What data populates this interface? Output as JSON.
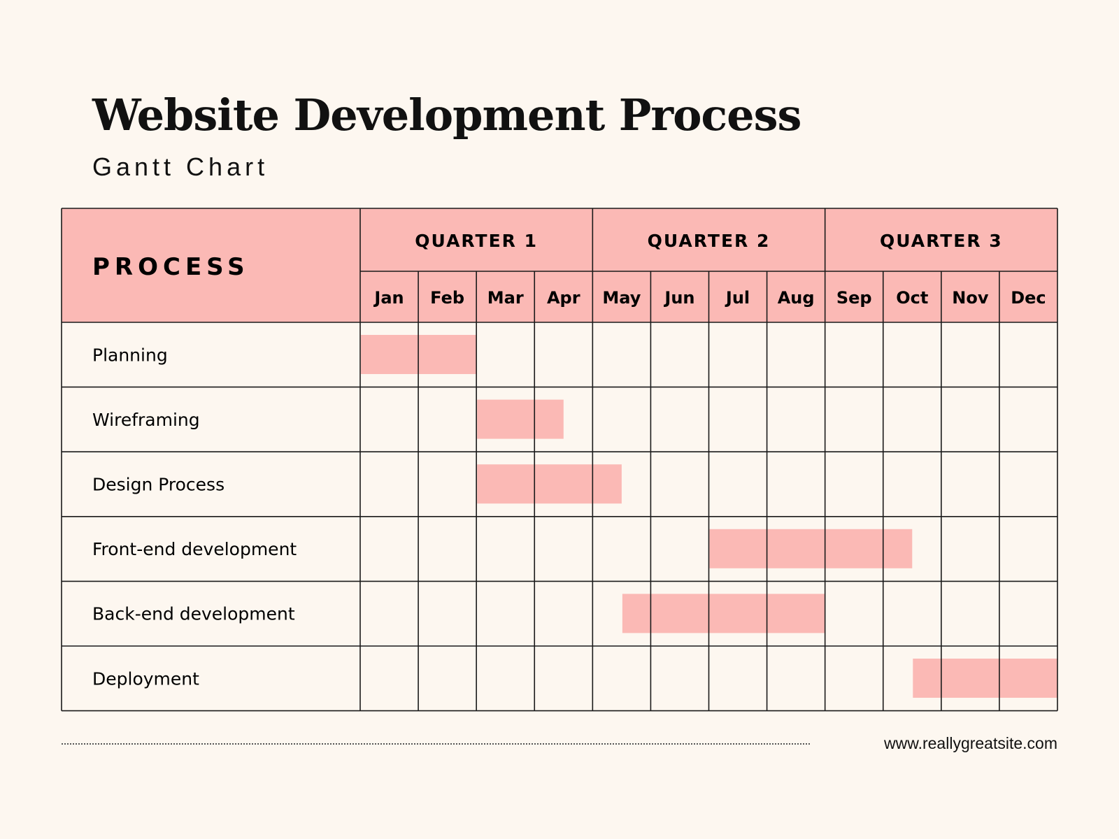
{
  "title": "Website Development Process",
  "subtitle": "Gantt Chart",
  "footer": {
    "url": "www.reallygreatsite.com"
  },
  "colors": {
    "background": "#fdf7f0",
    "header": "#fbb9b5",
    "bar": "#fbb9b5",
    "grid": "#1a1a1a"
  },
  "chart_data": {
    "type": "gantt",
    "process_header": "PROCESS",
    "quarters": [
      {
        "label": "QUARTER 1",
        "months": 4
      },
      {
        "label": "QUARTER 2",
        "months": 4
      },
      {
        "label": "QUARTER 3",
        "months": 4
      }
    ],
    "months": [
      "Jan",
      "Feb",
      "Mar",
      "Apr",
      "May",
      "Jun",
      "Jul",
      "Aug",
      "Sep",
      "Oct",
      "Nov",
      "Dec"
    ],
    "tasks": [
      {
        "name": "Planning",
        "start": "Jan",
        "start_month": 0,
        "end_month": 2
      },
      {
        "name": "Wireframing",
        "start": "Mar",
        "start_month": 2,
        "end_month": 3.5
      },
      {
        "name": "Design Process",
        "start": "Mar",
        "start_month": 2,
        "end_month": 4.5
      },
      {
        "name": "Front-end development",
        "start": "Jul",
        "start_month": 6,
        "end_month": 9.5
      },
      {
        "name": "Back-end development",
        "start": "mid-May",
        "start_month": 4.5,
        "end_month": 8
      },
      {
        "name": "Deployment",
        "start": "mid-Oct",
        "start_month": 9.5,
        "end_month": 12
      }
    ]
  }
}
